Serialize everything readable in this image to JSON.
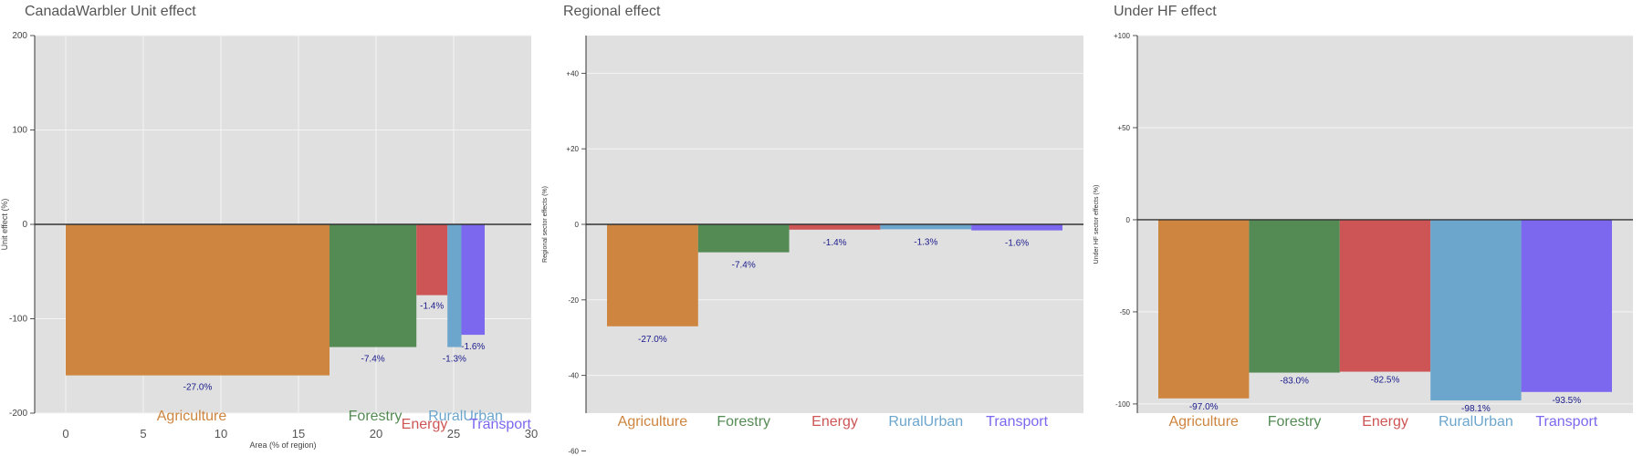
{
  "chart_data": [
    {
      "type": "bar",
      "title": "CanadaWarbler Unit effect",
      "xlabel": "Area (% of region)",
      "ylabel": "Unit effect (%)",
      "xlim": [
        -2,
        30
      ],
      "ylim": [
        -200,
        200
      ],
      "xticks": [
        0,
        5,
        10,
        15,
        20,
        25,
        30
      ],
      "yticks": [
        -200,
        -100,
        0,
        100,
        200
      ],
      "grid": true,
      "sectors": [
        {
          "name": "Agriculture",
          "color": "#CD853F",
          "x_start": 0,
          "x_end": 17,
          "value": -160,
          "label": "-27.0%"
        },
        {
          "name": "Forestry",
          "color": "#548B54",
          "x_start": 17,
          "x_end": 22.6,
          "value": -130,
          "label": "-7.4%"
        },
        {
          "name": "Energy",
          "color": "#CD5555",
          "x_start": 22.6,
          "x_end": 24.6,
          "value": -75,
          "label": "-1.4%"
        },
        {
          "name": "RuralUrban",
          "color": "#6CA6CD",
          "x_start": 24.6,
          "x_end": 25.5,
          "value": -130,
          "label": "-1.3%"
        },
        {
          "name": "Transport",
          "color": "#7B68EE",
          "x_start": 25.5,
          "x_end": 27,
          "value": -117,
          "label": "-1.6%"
        }
      ]
    },
    {
      "type": "bar",
      "title": "Regional effect",
      "ylabel": "Regional sector effects (%)",
      "ylim": [
        -50,
        50
      ],
      "yticks": [
        -60,
        -40,
        -20,
        0,
        20,
        40
      ],
      "ytick_labels": [
        "-60",
        "-40",
        "-20",
        "0",
        "+20",
        "+40"
      ],
      "grid": true,
      "categories": [
        "Agriculture",
        "Forestry",
        "Energy",
        "RuralUrban",
        "Transport"
      ],
      "colors": [
        "#CD853F",
        "#548B54",
        "#CD5555",
        "#6CA6CD",
        "#7B68EE"
      ],
      "values": [
        -27.0,
        -7.4,
        -1.4,
        -1.3,
        -1.6
      ],
      "labels": [
        "-27.0%",
        "-7.4%",
        "-1.4%",
        "-1.3%",
        "-1.6%"
      ]
    },
    {
      "type": "bar",
      "title": "Under HF effect",
      "ylabel": "Under HF sector effects (%)",
      "ylim": [
        -105,
        100
      ],
      "yticks": [
        -100,
        -50,
        0,
        50,
        100
      ],
      "ytick_labels": [
        "-100",
        "-50",
        "0",
        "+50",
        "+100"
      ],
      "grid": true,
      "categories": [
        "Agriculture",
        "Forestry",
        "Energy",
        "RuralUrban",
        "Transport"
      ],
      "colors": [
        "#CD853F",
        "#548B54",
        "#CD5555",
        "#6CA6CD",
        "#7B68EE"
      ],
      "values": [
        -97.0,
        -83.0,
        -82.5,
        -98.1,
        -93.5
      ],
      "labels": [
        "-97.0%",
        "-83.0%",
        "-82.5%",
        "-98.1%",
        "-93.5%"
      ]
    }
  ]
}
